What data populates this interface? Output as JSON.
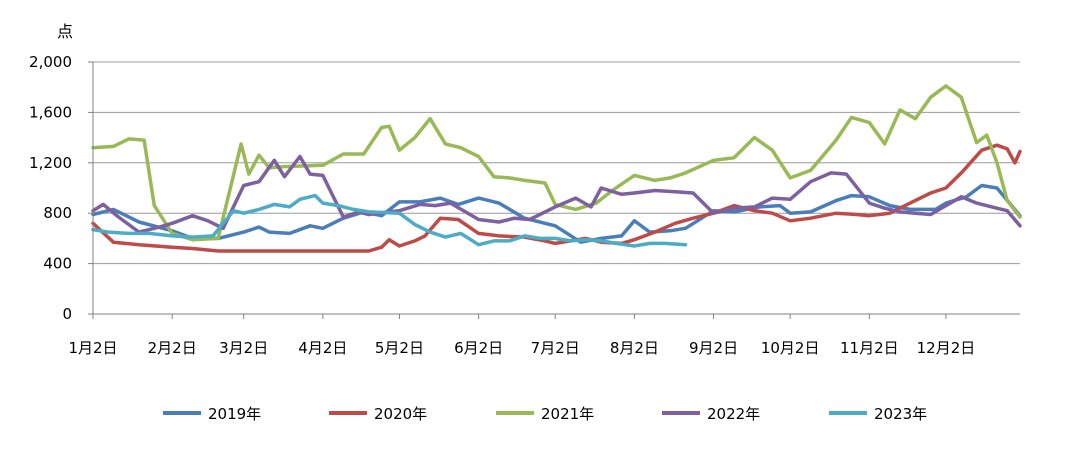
{
  "chart_data": {
    "type": "line",
    "title": "",
    "xlabel": "",
    "ylabel": "点",
    "ylim": [
      0,
      2000
    ],
    "yticks": [
      0,
      400,
      800,
      1200,
      1600,
      2000
    ],
    "ytick_labels": [
      "0",
      "400",
      "800",
      "1,200",
      "1,600",
      "2,000"
    ],
    "x_domain": [
      "01-02",
      "12-31"
    ],
    "grid": "horizontal",
    "legend_position": "bottom",
    "categories": [
      "1月2日",
      "2月2日",
      "3月2日",
      "4月2日",
      "5月2日",
      "6月2日",
      "7月2日",
      "8月2日",
      "9月2日",
      "10月2日",
      "11月2日",
      "12月2日"
    ],
    "category_dates": [
      "01-02",
      "02-02",
      "03-02",
      "04-02",
      "05-02",
      "06-02",
      "07-02",
      "08-02",
      "09-02",
      "10-02",
      "11-02",
      "12-02"
    ],
    "series": [
      {
        "name": "2019年",
        "color": "#4a7ebb",
        "points": [
          [
            "01-02",
            790
          ],
          [
            "01-10",
            830
          ],
          [
            "01-20",
            730
          ],
          [
            "02-02",
            660
          ],
          [
            "02-10",
            600
          ],
          [
            "02-20",
            600
          ],
          [
            "03-02",
            650
          ],
          [
            "03-08",
            690
          ],
          [
            "03-12",
            650
          ],
          [
            "03-20",
            640
          ],
          [
            "03-28",
            700
          ],
          [
            "04-02",
            680
          ],
          [
            "04-10",
            760
          ],
          [
            "04-18",
            810
          ],
          [
            "04-25",
            780
          ],
          [
            "05-02",
            890
          ],
          [
            "05-10",
            890
          ],
          [
            "05-18",
            920
          ],
          [
            "05-25",
            870
          ],
          [
            "06-02",
            920
          ],
          [
            "06-10",
            880
          ],
          [
            "06-20",
            760
          ],
          [
            "06-28",
            720
          ],
          [
            "07-02",
            700
          ],
          [
            "07-12",
            570
          ],
          [
            "07-20",
            600
          ],
          [
            "07-28",
            620
          ],
          [
            "08-02",
            740
          ],
          [
            "08-08",
            650
          ],
          [
            "08-16",
            660
          ],
          [
            "08-22",
            680
          ],
          [
            "09-02",
            820
          ],
          [
            "09-10",
            810
          ],
          [
            "09-20",
            850
          ],
          [
            "09-28",
            860
          ],
          [
            "10-02",
            800
          ],
          [
            "10-10",
            810
          ],
          [
            "10-20",
            900
          ],
          [
            "10-26",
            940
          ],
          [
            "11-02",
            930
          ],
          [
            "11-10",
            860
          ],
          [
            "11-18",
            830
          ],
          [
            "11-28",
            830
          ],
          [
            "12-02",
            880
          ],
          [
            "12-10",
            930
          ],
          [
            "12-16",
            1020
          ],
          [
            "12-22",
            1000
          ],
          [
            "12-31",
            780
          ]
        ]
      },
      {
        "name": "2020年",
        "color": "#be4b48",
        "points": [
          [
            "01-02",
            720
          ],
          [
            "01-10",
            570
          ],
          [
            "01-20",
            550
          ],
          [
            "02-02",
            530
          ],
          [
            "02-10",
            520
          ],
          [
            "02-20",
            500
          ],
          [
            "03-02",
            500
          ],
          [
            "03-20",
            500
          ],
          [
            "04-02",
            500
          ],
          [
            "04-20",
            500
          ],
          [
            "04-25",
            530
          ],
          [
            "04-28",
            590
          ],
          [
            "05-02",
            540
          ],
          [
            "05-08",
            580
          ],
          [
            "05-12",
            620
          ],
          [
            "05-18",
            760
          ],
          [
            "05-25",
            750
          ],
          [
            "06-02",
            640
          ],
          [
            "06-10",
            620
          ],
          [
            "06-20",
            610
          ],
          [
            "06-28",
            580
          ],
          [
            "07-02",
            560
          ],
          [
            "07-08",
            580
          ],
          [
            "07-14",
            600
          ],
          [
            "07-20",
            570
          ],
          [
            "07-28",
            560
          ],
          [
            "08-02",
            590
          ],
          [
            "08-10",
            650
          ],
          [
            "08-18",
            720
          ],
          [
            "08-25",
            760
          ],
          [
            "09-02",
            800
          ],
          [
            "09-10",
            860
          ],
          [
            "09-18",
            820
          ],
          [
            "09-25",
            800
          ],
          [
            "10-02",
            740
          ],
          [
            "10-10",
            760
          ],
          [
            "10-20",
            800
          ],
          [
            "10-28",
            790
          ],
          [
            "11-02",
            780
          ],
          [
            "11-10",
            800
          ],
          [
            "11-18",
            880
          ],
          [
            "11-26",
            960
          ],
          [
            "12-02",
            1000
          ],
          [
            "12-08",
            1120
          ],
          [
            "12-16",
            1300
          ],
          [
            "12-22",
            1340
          ],
          [
            "12-26",
            1310
          ],
          [
            "12-29",
            1200
          ],
          [
            "12-31",
            1290
          ]
        ]
      },
      {
        "name": "2021年",
        "color": "#98b954",
        "points": [
          [
            "01-02",
            1320
          ],
          [
            "01-10",
            1330
          ],
          [
            "01-16",
            1390
          ],
          [
            "01-22",
            1380
          ],
          [
            "01-26",
            860
          ],
          [
            "02-02",
            640
          ],
          [
            "02-10",
            590
          ],
          [
            "02-20",
            600
          ],
          [
            "03-01",
            1350
          ],
          [
            "03-04",
            1110
          ],
          [
            "03-08",
            1260
          ],
          [
            "03-12",
            1160
          ],
          [
            "03-18",
            1170
          ],
          [
            "04-02",
            1180
          ],
          [
            "04-10",
            1270
          ],
          [
            "04-18",
            1270
          ],
          [
            "04-25",
            1480
          ],
          [
            "04-28",
            1490
          ],
          [
            "05-02",
            1300
          ],
          [
            "05-08",
            1400
          ],
          [
            "05-14",
            1550
          ],
          [
            "05-20",
            1350
          ],
          [
            "05-26",
            1320
          ],
          [
            "06-02",
            1250
          ],
          [
            "06-08",
            1090
          ],
          [
            "06-14",
            1080
          ],
          [
            "06-20",
            1060
          ],
          [
            "06-28",
            1040
          ],
          [
            "07-02",
            870
          ],
          [
            "07-10",
            830
          ],
          [
            "07-18",
            880
          ],
          [
            "07-25",
            990
          ],
          [
            "08-02",
            1100
          ],
          [
            "08-10",
            1060
          ],
          [
            "08-16",
            1080
          ],
          [
            "08-22",
            1120
          ],
          [
            "09-02",
            1220
          ],
          [
            "09-10",
            1240
          ],
          [
            "09-18",
            1400
          ],
          [
            "09-25",
            1300
          ],
          [
            "10-02",
            1080
          ],
          [
            "10-10",
            1140
          ],
          [
            "10-20",
            1380
          ],
          [
            "10-26",
            1560
          ],
          [
            "11-02",
            1520
          ],
          [
            "11-08",
            1350
          ],
          [
            "11-14",
            1620
          ],
          [
            "11-20",
            1550
          ],
          [
            "11-26",
            1720
          ],
          [
            "12-02",
            1810
          ],
          [
            "12-08",
            1720
          ],
          [
            "12-14",
            1360
          ],
          [
            "12-18",
            1420
          ],
          [
            "12-22",
            1200
          ],
          [
            "12-26",
            900
          ],
          [
            "12-31",
            770
          ]
        ]
      },
      {
        "name": "2022年",
        "color": "#7d60a0",
        "points": [
          [
            "01-02",
            820
          ],
          [
            "01-06",
            870
          ],
          [
            "01-12",
            770
          ],
          [
            "01-20",
            650
          ],
          [
            "01-28",
            690
          ],
          [
            "02-02",
            720
          ],
          [
            "02-10",
            780
          ],
          [
            "02-16",
            740
          ],
          [
            "02-22",
            680
          ],
          [
            "03-02",
            1020
          ],
          [
            "03-08",
            1050
          ],
          [
            "03-14",
            1220
          ],
          [
            "03-18",
            1090
          ],
          [
            "03-24",
            1250
          ],
          [
            "03-28",
            1110
          ],
          [
            "04-02",
            1100
          ],
          [
            "04-10",
            770
          ],
          [
            "04-16",
            810
          ],
          [
            "04-20",
            790
          ],
          [
            "04-28",
            810
          ],
          [
            "05-02",
            820
          ],
          [
            "05-10",
            870
          ],
          [
            "05-16",
            860
          ],
          [
            "05-22",
            880
          ],
          [
            "06-02",
            750
          ],
          [
            "06-10",
            730
          ],
          [
            "06-16",
            760
          ],
          [
            "06-22",
            750
          ],
          [
            "07-02",
            850
          ],
          [
            "07-10",
            920
          ],
          [
            "07-16",
            850
          ],
          [
            "07-20",
            1000
          ],
          [
            "07-28",
            950
          ],
          [
            "08-02",
            960
          ],
          [
            "08-10",
            980
          ],
          [
            "08-18",
            970
          ],
          [
            "08-25",
            960
          ],
          [
            "09-02",
            800
          ],
          [
            "09-10",
            840
          ],
          [
            "09-18",
            850
          ],
          [
            "09-25",
            920
          ],
          [
            "10-02",
            910
          ],
          [
            "10-10",
            1050
          ],
          [
            "10-18",
            1120
          ],
          [
            "10-24",
            1110
          ],
          [
            "11-02",
            880
          ],
          [
            "11-08",
            840
          ],
          [
            "11-14",
            810
          ],
          [
            "11-20",
            800
          ],
          [
            "11-26",
            790
          ],
          [
            "12-02",
            860
          ],
          [
            "12-08",
            930
          ],
          [
            "12-14",
            880
          ],
          [
            "12-20",
            850
          ],
          [
            "12-26",
            820
          ],
          [
            "12-31",
            700
          ]
        ]
      },
      {
        "name": "2023年",
        "color": "#4bacc6",
        "points": [
          [
            "01-02",
            670
          ],
          [
            "01-08",
            650
          ],
          [
            "01-16",
            640
          ],
          [
            "01-24",
            640
          ],
          [
            "02-02",
            620
          ],
          [
            "02-10",
            610
          ],
          [
            "02-18",
            620
          ],
          [
            "02-26",
            820
          ],
          [
            "03-02",
            800
          ],
          [
            "03-08",
            830
          ],
          [
            "03-14",
            870
          ],
          [
            "03-20",
            850
          ],
          [
            "03-24",
            910
          ],
          [
            "03-30",
            940
          ],
          [
            "04-02",
            880
          ],
          [
            "04-08",
            860
          ],
          [
            "04-14",
            830
          ],
          [
            "04-20",
            810
          ],
          [
            "05-02",
            800
          ],
          [
            "05-08",
            710
          ],
          [
            "05-14",
            650
          ],
          [
            "05-20",
            610
          ],
          [
            "05-26",
            640
          ],
          [
            "06-02",
            550
          ],
          [
            "06-08",
            580
          ],
          [
            "06-14",
            580
          ],
          [
            "06-20",
            620
          ],
          [
            "06-26",
            600
          ],
          [
            "07-02",
            600
          ],
          [
            "07-08",
            580
          ],
          [
            "07-14",
            590
          ],
          [
            "07-20",
            580
          ],
          [
            "07-26",
            560
          ],
          [
            "08-02",
            540
          ],
          [
            "08-08",
            560
          ],
          [
            "08-14",
            560
          ],
          [
            "08-22",
            550
          ]
        ]
      }
    ]
  }
}
